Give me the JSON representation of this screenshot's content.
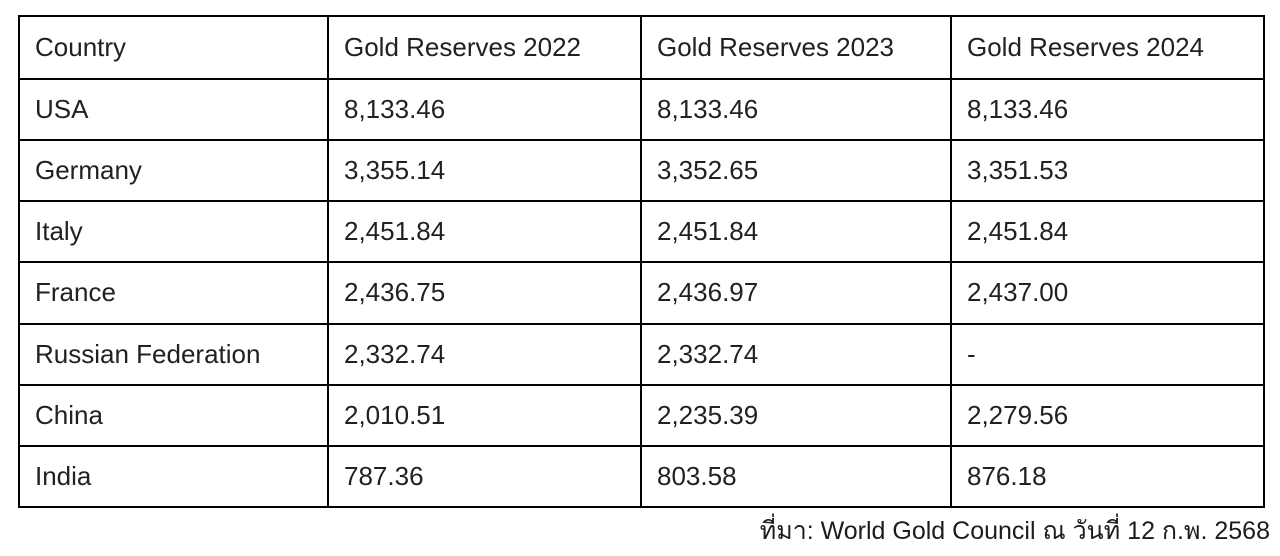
{
  "chart_data": {
    "type": "table",
    "columns": [
      "Country",
      "Gold Reserves 2022",
      "Gold Reserves 2023",
      "Gold Reserves 2024"
    ],
    "rows": [
      [
        "USA",
        "8,133.46",
        "8,133.46",
        "8,133.46"
      ],
      [
        "Germany",
        "3,355.14",
        "3,352.65",
        "3,351.53"
      ],
      [
        "Italy",
        "2,451.84",
        "2,451.84",
        "2,451.84"
      ],
      [
        "France",
        "2,436.75",
        "2,436.97",
        "2,437.00"
      ],
      [
        "Russian Federation",
        "2,332.74",
        "2,332.74",
        "-"
      ],
      [
        "China",
        "2,010.51",
        "2,235.39",
        "2,279.56"
      ],
      [
        "India",
        "787.36",
        "803.58",
        "876.18"
      ]
    ],
    "title": "",
    "source": "ที่มา: World Gold Council ณ วันที่ 12 ก.พ. 2568",
    "layout_hints": "grid on, all cells bordered, left-aligned text, no header emphasis"
  },
  "footer": {
    "source_label": "ที่มา: World Gold Council ณ วันที่ 12 ก.พ. 2568"
  }
}
